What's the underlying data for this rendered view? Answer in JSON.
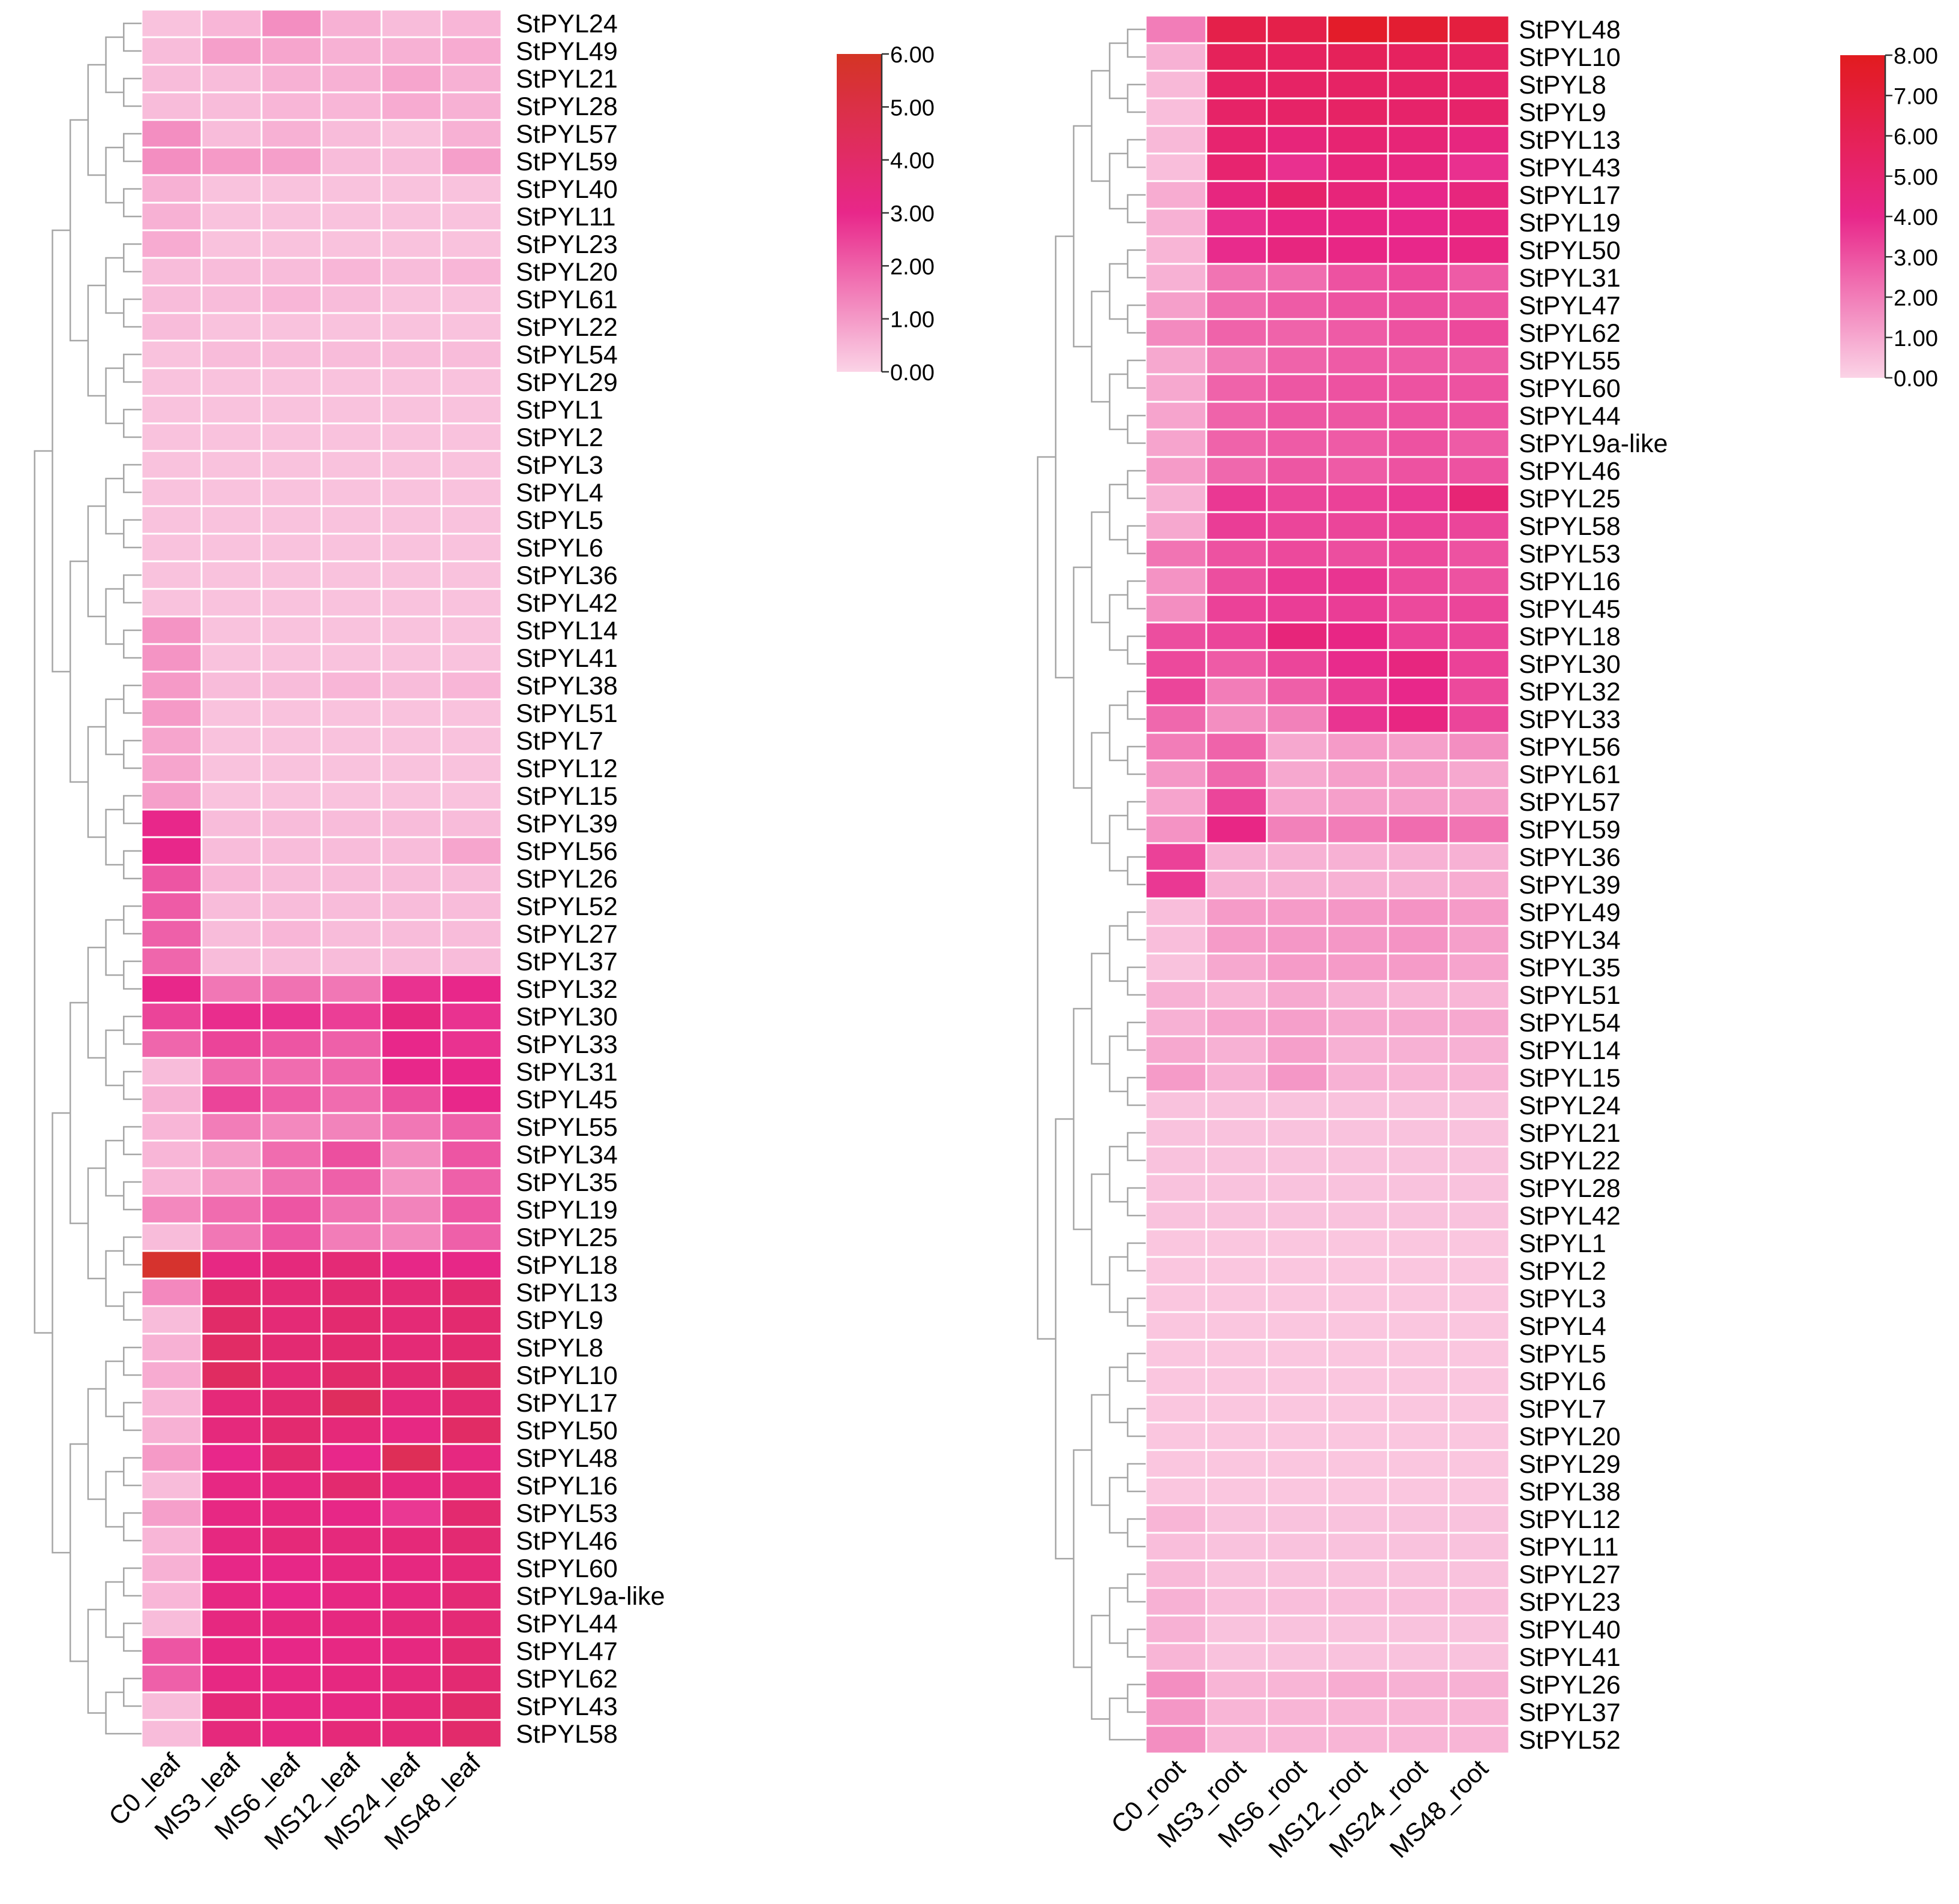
{
  "colors": {
    "low": "#fbd3e6",
    "mid": "#e8278a",
    "high": "#d43424",
    "high_root": "#e21b1f",
    "tree": "#a6a6a6",
    "grid": "#ffffff",
    "text": "#000000"
  },
  "chart_data": [
    {
      "type": "heatmap",
      "title": "",
      "tissue": "leaf",
      "columns": [
        "C0_leaf",
        "MS3_leaf",
        "MS6_leaf",
        "MS12_leaf",
        "MS24_leaf",
        "MS48_leaf"
      ],
      "rows": [
        "StPYL24",
        "StPYL49",
        "StPYL21",
        "StPYL28",
        "StPYL57",
        "StPYL59",
        "StPYL40",
        "StPYL11",
        "StPYL23",
        "StPYL20",
        "StPYL61",
        "StPYL22",
        "StPYL54",
        "StPYL29",
        "StPYL1",
        "StPYL2",
        "StPYL3",
        "StPYL4",
        "StPYL5",
        "StPYL6",
        "StPYL36",
        "StPYL42",
        "StPYL14",
        "StPYL41",
        "StPYL38",
        "StPYL51",
        "StPYL7",
        "StPYL12",
        "StPYL15",
        "StPYL39",
        "StPYL56",
        "StPYL26",
        "StPYL52",
        "StPYL27",
        "StPYL37",
        "StPYL32",
        "StPYL30",
        "StPYL33",
        "StPYL31",
        "StPYL45",
        "StPYL55",
        "StPYL34",
        "StPYL35",
        "StPYL19",
        "StPYL25",
        "StPYL18",
        "StPYL13",
        "StPYL9",
        "StPYL8",
        "StPYL10",
        "StPYL17",
        "StPYL50",
        "StPYL48",
        "StPYL16",
        "StPYL53",
        "StPYL46",
        "StPYL60",
        "StPYL9a-like",
        "StPYL44",
        "StPYL47",
        "StPYL62",
        "StPYL43",
        "StPYL58"
      ],
      "values": [
        [
          0.3,
          0.5,
          1.2,
          0.6,
          0.4,
          0.5
        ],
        [
          0.4,
          0.9,
          0.8,
          0.6,
          0.6,
          0.7
        ],
        [
          0.4,
          0.4,
          0.6,
          0.6,
          0.8,
          0.6
        ],
        [
          0.4,
          0.4,
          0.5,
          0.5,
          0.7,
          0.6
        ],
        [
          1.2,
          0.4,
          0.6,
          0.4,
          0.3,
          0.6
        ],
        [
          1.2,
          1.0,
          0.9,
          0.4,
          0.4,
          0.9
        ],
        [
          0.6,
          0.3,
          0.3,
          0.3,
          0.3,
          0.3
        ],
        [
          0.6,
          0.3,
          0.3,
          0.3,
          0.3,
          0.3
        ],
        [
          0.7,
          0.3,
          0.3,
          0.3,
          0.3,
          0.3
        ],
        [
          0.4,
          0.4,
          0.4,
          0.5,
          0.4,
          0.5
        ],
        [
          0.4,
          0.4,
          0.5,
          0.4,
          0.3,
          0.3
        ],
        [
          0.4,
          0.3,
          0.3,
          0.3,
          0.3,
          0.3
        ],
        [
          0.3,
          0.4,
          0.4,
          0.4,
          0.4,
          0.4
        ],
        [
          0.3,
          0.3,
          0.3,
          0.3,
          0.3,
          0.3
        ],
        [
          0.3,
          0.3,
          0.3,
          0.3,
          0.3,
          0.3
        ],
        [
          0.3,
          0.3,
          0.3,
          0.3,
          0.3,
          0.3
        ],
        [
          0.3,
          0.3,
          0.3,
          0.3,
          0.3,
          0.3
        ],
        [
          0.3,
          0.3,
          0.3,
          0.3,
          0.3,
          0.3
        ],
        [
          0.3,
          0.3,
          0.3,
          0.3,
          0.3,
          0.3
        ],
        [
          0.3,
          0.3,
          0.3,
          0.3,
          0.3,
          0.3
        ],
        [
          0.3,
          0.3,
          0.3,
          0.3,
          0.3,
          0.3
        ],
        [
          0.3,
          0.3,
          0.3,
          0.3,
          0.3,
          0.3
        ],
        [
          1.1,
          0.3,
          0.3,
          0.3,
          0.3,
          0.3
        ],
        [
          1.1,
          0.3,
          0.3,
          0.3,
          0.3,
          0.3
        ],
        [
          1.0,
          0.4,
          0.4,
          0.5,
          0.4,
          0.5
        ],
        [
          1.0,
          0.3,
          0.3,
          0.3,
          0.3,
          0.3
        ],
        [
          0.8,
          0.3,
          0.3,
          0.3,
          0.3,
          0.3
        ],
        [
          0.8,
          0.3,
          0.3,
          0.3,
          0.3,
          0.3
        ],
        [
          0.9,
          0.3,
          0.3,
          0.3,
          0.3,
          0.3
        ],
        [
          3.0,
          0.4,
          0.4,
          0.4,
          0.4,
          0.4
        ],
        [
          3.0,
          0.4,
          0.4,
          0.4,
          0.4,
          0.8
        ],
        [
          2.2,
          0.5,
          0.4,
          0.4,
          0.4,
          0.4
        ],
        [
          2.1,
          0.4,
          0.4,
          0.4,
          0.4,
          0.4
        ],
        [
          2.0,
          0.4,
          0.5,
          0.4,
          0.4,
          0.4
        ],
        [
          1.9,
          0.4,
          0.4,
          0.4,
          0.4,
          0.4
        ],
        [
          3.0,
          1.6,
          1.7,
          1.6,
          2.8,
          3.0
        ],
        [
          2.5,
          2.9,
          2.8,
          2.6,
          3.3,
          2.8
        ],
        [
          1.9,
          2.5,
          2.2,
          2.0,
          3.0,
          2.8
        ],
        [
          0.4,
          1.8,
          1.8,
          1.9,
          3.0,
          3.0
        ],
        [
          0.6,
          2.5,
          2.1,
          1.8,
          2.3,
          3.0
        ],
        [
          0.5,
          1.5,
          1.3,
          1.4,
          1.6,
          2.0
        ],
        [
          0.5,
          0.9,
          1.8,
          2.3,
          1.2,
          2.2
        ],
        [
          0.5,
          1.0,
          1.7,
          2.0,
          1.1,
          2.0
        ],
        [
          1.3,
          1.8,
          2.2,
          1.7,
          1.4,
          2.2
        ],
        [
          0.4,
          1.6,
          2.2,
          1.5,
          1.3,
          2.0
        ],
        [
          5.7,
          3.2,
          3.4,
          3.6,
          3.1,
          3.1
        ],
        [
          1.3,
          3.8,
          3.6,
          3.7,
          3.6,
          3.8
        ],
        [
          0.4,
          4.0,
          3.6,
          3.8,
          3.6,
          3.8
        ],
        [
          0.6,
          4.1,
          3.7,
          3.8,
          3.6,
          3.8
        ],
        [
          0.7,
          4.2,
          3.6,
          3.9,
          3.7,
          4.1
        ],
        [
          0.5,
          3.5,
          3.7,
          4.3,
          3.4,
          3.7
        ],
        [
          0.6,
          3.4,
          3.8,
          3.5,
          3.2,
          4.1
        ],
        [
          1.0,
          3.0,
          3.8,
          3.0,
          4.5,
          3.3
        ],
        [
          0.4,
          3.2,
          3.3,
          3.8,
          3.3,
          3.5
        ],
        [
          0.9,
          3.2,
          3.3,
          3.1,
          2.7,
          3.8
        ],
        [
          0.5,
          3.3,
          3.5,
          3.4,
          3.5,
          3.7
        ],
        [
          0.6,
          3.1,
          3.1,
          3.3,
          3.3,
          3.5
        ],
        [
          0.5,
          3.2,
          3.0,
          3.2,
          3.3,
          3.6
        ],
        [
          0.4,
          3.3,
          3.3,
          3.3,
          3.4,
          3.6
        ],
        [
          2.2,
          3.2,
          3.1,
          3.2,
          3.3,
          3.7
        ],
        [
          2.0,
          3.2,
          3.2,
          3.3,
          3.4,
          3.7
        ],
        [
          0.4,
          3.5,
          3.2,
          3.2,
          3.5,
          3.9
        ],
        [
          0.4,
          3.4,
          3.2,
          3.5,
          3.5,
          3.9
        ]
      ],
      "scale": {
        "min": 0,
        "max": 6,
        "ticks": [
          "0.00",
          "1.00",
          "2.00",
          "3.00",
          "4.00",
          "5.00",
          "6.00"
        ]
      }
    },
    {
      "type": "heatmap",
      "title": "",
      "tissue": "root",
      "columns": [
        "C0_root",
        "MS3_root",
        "MS6_root",
        "MS12_root",
        "MS24_root",
        "MS48_root"
      ],
      "rows": [
        "StPYL48",
        "StPYL10",
        "StPYL8",
        "StPYL9",
        "StPYL13",
        "StPYL43",
        "StPYL17",
        "StPYL19",
        "StPYL50",
        "StPYL31",
        "StPYL47",
        "StPYL62",
        "StPYL55",
        "StPYL60",
        "StPYL44",
        "StPYL9a-like",
        "StPYL46",
        "StPYL25",
        "StPYL58",
        "StPYL53",
        "StPYL16",
        "StPYL45",
        "StPYL18",
        "StPYL30",
        "StPYL32",
        "StPYL33",
        "StPYL56",
        "StPYL61",
        "StPYL57",
        "StPYL59",
        "StPYL36",
        "StPYL39",
        "StPYL49",
        "StPYL34",
        "StPYL35",
        "StPYL51",
        "StPYL54",
        "StPYL14",
        "StPYL15",
        "StPYL24",
        "StPYL21",
        "StPYL22",
        "StPYL28",
        "StPYL42",
        "StPYL1",
        "StPYL2",
        "StPYL3",
        "StPYL4",
        "StPYL5",
        "StPYL6",
        "StPYL7",
        "StPYL20",
        "StPYL29",
        "StPYL38",
        "StPYL12",
        "StPYL11",
        "StPYL27",
        "StPYL23",
        "StPYL40",
        "StPYL41",
        "StPYL26",
        "StPYL37",
        "StPYL52"
      ],
      "values": [
        [
          2.0,
          6.4,
          6.4,
          7.6,
          7.3,
          6.8
        ],
        [
          0.8,
          5.8,
          5.6,
          5.8,
          5.6,
          5.5
        ],
        [
          0.6,
          5.4,
          5.4,
          5.4,
          5.3,
          5.2
        ],
        [
          0.5,
          5.3,
          5.3,
          5.4,
          5.2,
          5.2
        ],
        [
          0.6,
          5.0,
          4.6,
          4.9,
          4.7,
          4.4
        ],
        [
          0.5,
          5.0,
          3.8,
          4.6,
          4.4,
          3.8
        ],
        [
          0.9,
          4.4,
          5.2,
          4.6,
          4.0,
          4.5
        ],
        [
          0.8,
          3.8,
          4.2,
          4.2,
          4.0,
          4.3
        ],
        [
          0.7,
          3.9,
          4.4,
          4.2,
          4.0,
          4.3
        ],
        [
          0.8,
          2.2,
          2.4,
          3.0,
          3.2,
          2.8
        ],
        [
          1.2,
          2.4,
          2.8,
          3.0,
          3.1,
          3.0
        ],
        [
          1.7,
          2.6,
          2.6,
          2.8,
          3.0,
          3.2
        ],
        [
          1.0,
          2.0,
          2.6,
          2.8,
          2.8,
          2.8
        ],
        [
          1.0,
          2.6,
          2.9,
          3.0,
          3.0,
          3.0
        ],
        [
          1.1,
          2.6,
          2.9,
          2.9,
          3.0,
          3.0
        ],
        [
          1.1,
          2.6,
          2.8,
          2.8,
          3.0,
          2.8
        ],
        [
          1.3,
          2.5,
          2.9,
          2.8,
          3.0,
          3.0
        ],
        [
          0.8,
          3.6,
          3.3,
          3.4,
          3.6,
          4.8
        ],
        [
          1.0,
          3.5,
          3.3,
          3.3,
          3.4,
          3.3
        ],
        [
          2.2,
          3.0,
          3.2,
          3.1,
          3.2,
          3.0
        ],
        [
          1.5,
          3.1,
          3.6,
          3.7,
          3.2,
          3.0
        ],
        [
          1.6,
          3.4,
          3.5,
          3.5,
          3.2,
          3.3
        ],
        [
          3.1,
          3.3,
          4.6,
          4.2,
          3.4,
          3.3
        ],
        [
          3.2,
          2.8,
          3.3,
          3.9,
          4.4,
          3.4
        ],
        [
          3.3,
          2.0,
          2.7,
          3.5,
          4.0,
          3.2
        ],
        [
          2.5,
          1.6,
          1.9,
          3.7,
          4.3,
          3.3
        ],
        [
          2.0,
          2.6,
          1.0,
          1.3,
          1.2,
          1.6
        ],
        [
          1.4,
          2.5,
          1.0,
          1.2,
          1.2,
          1.0
        ],
        [
          1.1,
          3.3,
          1.1,
          1.2,
          1.2,
          1.2
        ],
        [
          1.5,
          4.2,
          1.9,
          2.0,
          2.4,
          2.2
        ],
        [
          3.4,
          0.8,
          0.8,
          0.8,
          0.8,
          0.8
        ],
        [
          3.6,
          0.8,
          0.8,
          0.8,
          0.8,
          0.9
        ],
        [
          0.5,
          1.3,
          1.3,
          1.4,
          1.5,
          1.3
        ],
        [
          0.5,
          1.3,
          1.4,
          1.4,
          1.5,
          1.2
        ],
        [
          0.4,
          1.0,
          1.3,
          1.3,
          1.3,
          1.1
        ],
        [
          0.8,
          0.7,
          1.0,
          0.8,
          0.7,
          0.7
        ],
        [
          0.8,
          1.1,
          1.2,
          1.0,
          1.0,
          1.0
        ],
        [
          1.0,
          0.8,
          1.2,
          0.8,
          0.8,
          0.8
        ],
        [
          1.3,
          0.8,
          1.4,
          0.8,
          0.7,
          0.7
        ],
        [
          0.4,
          0.4,
          0.4,
          0.4,
          0.4,
          0.4
        ],
        [
          0.4,
          0.4,
          0.4,
          0.4,
          0.4,
          0.4
        ],
        [
          0.4,
          0.4,
          0.4,
          0.4,
          0.4,
          0.4
        ],
        [
          0.4,
          0.4,
          0.4,
          0.4,
          0.4,
          0.4
        ],
        [
          0.4,
          0.4,
          0.4,
          0.4,
          0.4,
          0.4
        ],
        [
          0.3,
          0.3,
          0.3,
          0.3,
          0.3,
          0.3
        ],
        [
          0.3,
          0.3,
          0.3,
          0.3,
          0.3,
          0.3
        ],
        [
          0.3,
          0.3,
          0.3,
          0.3,
          0.3,
          0.3
        ],
        [
          0.3,
          0.3,
          0.3,
          0.3,
          0.3,
          0.3
        ],
        [
          0.3,
          0.3,
          0.3,
          0.3,
          0.3,
          0.3
        ],
        [
          0.3,
          0.3,
          0.3,
          0.3,
          0.3,
          0.3
        ],
        [
          0.3,
          0.3,
          0.3,
          0.3,
          0.3,
          0.3
        ],
        [
          0.3,
          0.3,
          0.3,
          0.3,
          0.3,
          0.3
        ],
        [
          0.3,
          0.3,
          0.3,
          0.3,
          0.3,
          0.3
        ],
        [
          0.3,
          0.3,
          0.3,
          0.3,
          0.3,
          0.3
        ],
        [
          0.7,
          0.4,
          0.4,
          0.4,
          0.4,
          0.4
        ],
        [
          0.5,
          0.4,
          0.4,
          0.4,
          0.4,
          0.4
        ],
        [
          0.6,
          0.4,
          0.4,
          0.4,
          0.4,
          0.4
        ],
        [
          0.8,
          0.5,
          0.5,
          0.5,
          0.5,
          0.5
        ],
        [
          0.8,
          0.4,
          0.4,
          0.4,
          0.4,
          0.4
        ],
        [
          0.7,
          0.4,
          0.4,
          0.4,
          0.4,
          0.4
        ],
        [
          1.6,
          0.7,
          0.7,
          0.9,
          0.8,
          0.8
        ],
        [
          1.4,
          0.7,
          0.7,
          0.7,
          0.7,
          0.7
        ],
        [
          1.6,
          0.7,
          0.7,
          0.7,
          0.7,
          0.7
        ]
      ],
      "scale": {
        "min": 0,
        "max": 8,
        "ticks": [
          "0.00",
          "1.00",
          "2.00",
          "3.00",
          "4.00",
          "5.00",
          "6.00",
          "7.00",
          "8.00"
        ]
      }
    }
  ]
}
